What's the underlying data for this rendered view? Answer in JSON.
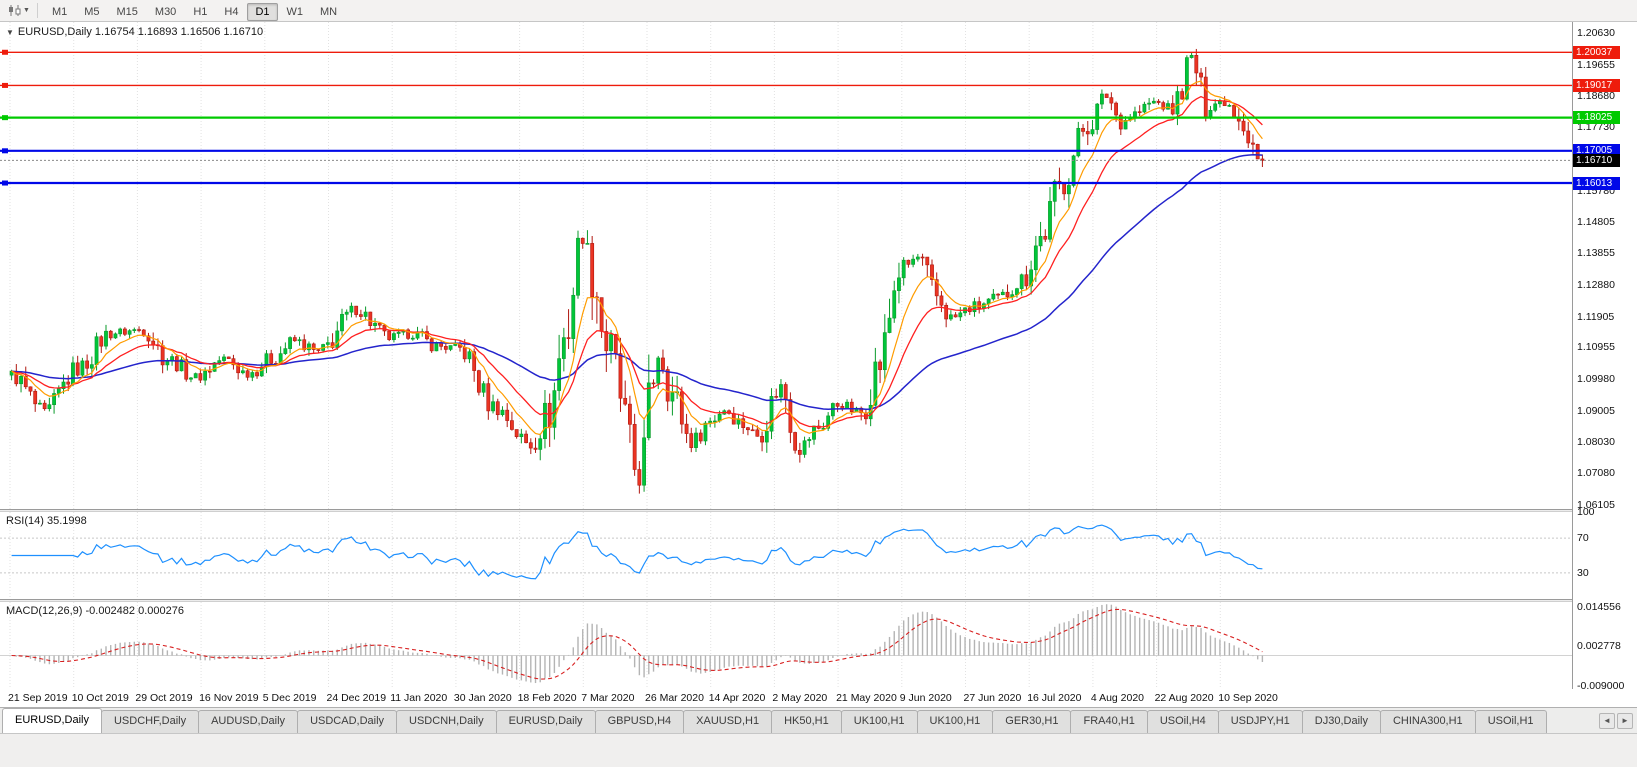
{
  "toolbar": {
    "chart_mode_icon": "candlestick-chart-icon",
    "timeframes": [
      "M1",
      "M5",
      "M15",
      "M30",
      "H1",
      "H4",
      "D1",
      "W1",
      "MN"
    ],
    "active_timeframe": "D1"
  },
  "chart": {
    "symbol": "EURUSD",
    "period": "Daily",
    "title_text": "EURUSD,Daily 1.16754 1.16893 1.16506 1.16710",
    "open": "1.16754",
    "high": "1.16893",
    "low": "1.16506",
    "close": "1.16710"
  },
  "indicators": {
    "rsi": {
      "label": "RSI(14)",
      "value": "35.1998"
    },
    "macd": {
      "label": "MACD(12,26,9)",
      "values": "-0.002482 0.000276"
    }
  },
  "chart_data": {
    "type": "candlestick",
    "symbol": "EURUSD",
    "timeframe": "Daily",
    "current_price": 1.1671,
    "last_ohlc": {
      "open": 1.16754,
      "high": 1.16893,
      "low": 1.16506,
      "close": 1.1671
    },
    "price_axis_ticks": [
      1.2063,
      1.19655,
      1.1868,
      1.1773,
      1.16755,
      1.1578,
      1.14805,
      1.13855,
      1.1288,
      1.11905,
      1.10955,
      1.0998,
      1.09005,
      1.0803,
      1.0708,
      1.06105
    ],
    "x_axis_labels": [
      "21 Sep 2019",
      "10 Oct 2019",
      "29 Oct 2019",
      "16 Nov 2019",
      "5 Dec 2019",
      "24 Dec 2019",
      "11 Jan 2020",
      "30 Jan 2020",
      "18 Feb 2020",
      "7 Mar 2020",
      "26 Mar 2020",
      "14 Apr 2020",
      "2 May 2020",
      "21 May 2020",
      "9 Jun 2020",
      "27 Jun 2020",
      "16 Jul 2020",
      "4 Aug 2020",
      "22 Aug 2020",
      "10 Sep 2020"
    ],
    "h_lines": [
      {
        "price": 1.20037,
        "label": "1.20037",
        "color": "#ee1c0c",
        "width": 1.4
      },
      {
        "price": 1.19017,
        "label": "1.19017",
        "color": "#ee1c0c",
        "width": 1.4
      },
      {
        "price": 1.18025,
        "label": "1.18025",
        "color": "#00ca00",
        "width": 2.2
      },
      {
        "price": 1.17005,
        "label": "1.17005",
        "color": "#0008e8",
        "width": 2.2
      },
      {
        "price": 1.16013,
        "label": "1.16013",
        "color": "#0008e8",
        "width": 2.2
      }
    ],
    "rsi_axis_ticks": [
      100,
      70,
      30
    ],
    "rsi_levels": [
      70,
      30
    ],
    "macd_axis_ticks": [
      0.014556,
      0.002778,
      -0.009
    ],
    "ma_periods": {
      "fast": 8,
      "mid": 17,
      "slow": 55
    },
    "price_path": [
      [
        0,
        1.101
      ],
      [
        7,
        1.0895
      ],
      [
        14,
        1.103
      ],
      [
        21,
        1.114
      ],
      [
        28,
        1.115
      ],
      [
        33,
        1.106
      ],
      [
        39,
        1.1005
      ],
      [
        45,
        1.106
      ],
      [
        50,
        1.1015
      ],
      [
        55,
        1.106
      ],
      [
        60,
        1.1115
      ],
      [
        65,
        1.108
      ],
      [
        73,
        1.121
      ],
      [
        80,
        1.1125
      ],
      [
        85,
        1.1138
      ],
      [
        90,
        1.11
      ],
      [
        95,
        1.109
      ],
      [
        102,
        1.0915
      ],
      [
        110,
        1.0795
      ],
      [
        114,
        1.09
      ],
      [
        117,
        1.112
      ],
      [
        121,
        1.144
      ],
      [
        123,
        1.133
      ],
      [
        126,
        1.1105
      ],
      [
        133,
        1.07
      ],
      [
        137,
        1.108
      ],
      [
        140,
        1.095
      ],
      [
        144,
        1.0805
      ],
      [
        148,
        1.087
      ],
      [
        151,
        1.0905
      ],
      [
        155,
        1.086
      ],
      [
        158,
        1.0825
      ],
      [
        163,
        1.0975
      ],
      [
        167,
        1.079
      ],
      [
        171,
        1.085
      ],
      [
        175,
        1.092
      ],
      [
        180,
        1.0895
      ],
      [
        184,
        1.105
      ],
      [
        188,
        1.133
      ],
      [
        192,
        1.137
      ],
      [
        196,
        1.125
      ],
      [
        199,
        1.1185
      ],
      [
        204,
        1.122
      ],
      [
        209,
        1.1245
      ],
      [
        214,
        1.13
      ],
      [
        218,
        1.143
      ],
      [
        222,
        1.159
      ],
      [
        228,
        1.178
      ],
      [
        232,
        1.187
      ],
      [
        235,
        1.179
      ],
      [
        238,
        1.1815
      ],
      [
        242,
        1.185
      ],
      [
        246,
        1.183
      ],
      [
        250,
        1.1985
      ],
      [
        253,
        1.184
      ],
      [
        257,
        1.1855
      ],
      [
        260,
        1.1815
      ],
      [
        263,
        1.172
      ],
      [
        265,
        1.1671
      ]
    ],
    "colors": {
      "bull_fill": "#00c53a",
      "bull_stroke": "#0a9a2a",
      "bear_fill": "#ea3423",
      "bear_stroke": "#b01810",
      "ma_fast": "#ff9c00",
      "ma_mid": "#ff2020",
      "ma_slow": "#2424cc",
      "rsi_line": "#1e90ff",
      "macd_hist": "#b4b4b4",
      "macd_signal": "#d82020",
      "current_price_bg": "#000000"
    }
  },
  "tabs": {
    "items": [
      "EURUSD,Daily",
      "USDCHF,Daily",
      "AUDUSD,Daily",
      "USDCAD,Daily",
      "USDCNH,Daily",
      "EURUSD,Daily",
      "GBPUSD,H4",
      "XAUUSD,H1",
      "HK50,H1",
      "UK100,H1",
      "UK100,H1",
      "GER30,H1",
      "FRA40,H1",
      "USOil,H4",
      "USDJPY,H1",
      "DJ30,Daily",
      "CHINA300,H1",
      "USOil,H1"
    ],
    "active_index": 0,
    "scroll_left_icon": "◄",
    "scroll_right_icon": "►"
  }
}
